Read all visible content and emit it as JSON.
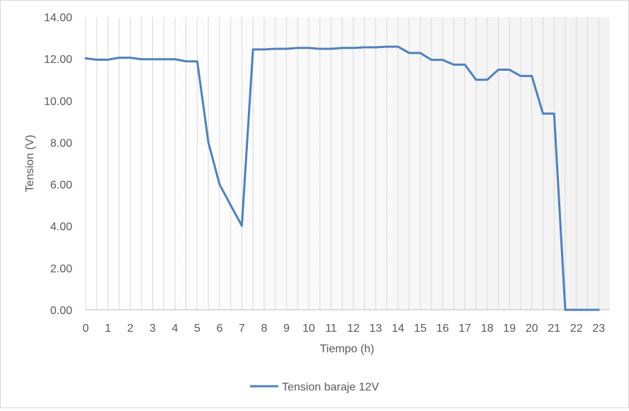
{
  "chart_data": {
    "type": "line",
    "title": "",
    "xlabel": "Tiempo (h)",
    "ylabel": "Tension (V)",
    "ylim": [
      0,
      14
    ],
    "y_ticks": [
      "0.00",
      "2.00",
      "4.00",
      "6.00",
      "8.00",
      "10.00",
      "12.00",
      "14.00"
    ],
    "x_ticks": [
      "0",
      "1",
      "2",
      "3",
      "4",
      "5",
      "6",
      "7",
      "8",
      "9",
      "10",
      "11",
      "12",
      "13",
      "14",
      "15",
      "16",
      "17",
      "18",
      "19",
      "20",
      "21",
      "22",
      "23"
    ],
    "grid": "vertical",
    "legend_position": "bottom",
    "series": [
      {
        "name": "Tension baraje 12V",
        "color": "#4f81bd",
        "x": [
          0,
          0.5,
          1,
          1.5,
          2,
          2.5,
          3,
          3.5,
          4,
          4.5,
          5,
          5.5,
          6,
          6.5,
          7,
          7.5,
          8,
          8.5,
          9,
          9.5,
          10,
          10.5,
          11,
          11.5,
          12,
          12.5,
          13,
          13.5,
          14,
          14.5,
          15,
          15.5,
          16,
          16.5,
          17,
          17.5,
          18,
          18.5,
          19,
          19.5,
          20,
          20.5,
          21,
          21.5,
          22,
          22.5,
          23
        ],
        "values": [
          12.02,
          11.96,
          11.96,
          12.05,
          12.05,
          11.98,
          11.98,
          11.98,
          11.98,
          11.88,
          11.88,
          8.0,
          6.0,
          5.0,
          4.02,
          12.45,
          12.45,
          12.48,
          12.48,
          12.52,
          12.52,
          12.48,
          12.48,
          12.52,
          12.52,
          12.55,
          12.55,
          12.58,
          12.58,
          12.28,
          12.28,
          11.95,
          11.95,
          11.72,
          11.72,
          11.0,
          11.0,
          11.48,
          11.48,
          11.18,
          11.18,
          9.38,
          9.38,
          0.0,
          0.0,
          0.0,
          0.0
        ]
      }
    ]
  }
}
